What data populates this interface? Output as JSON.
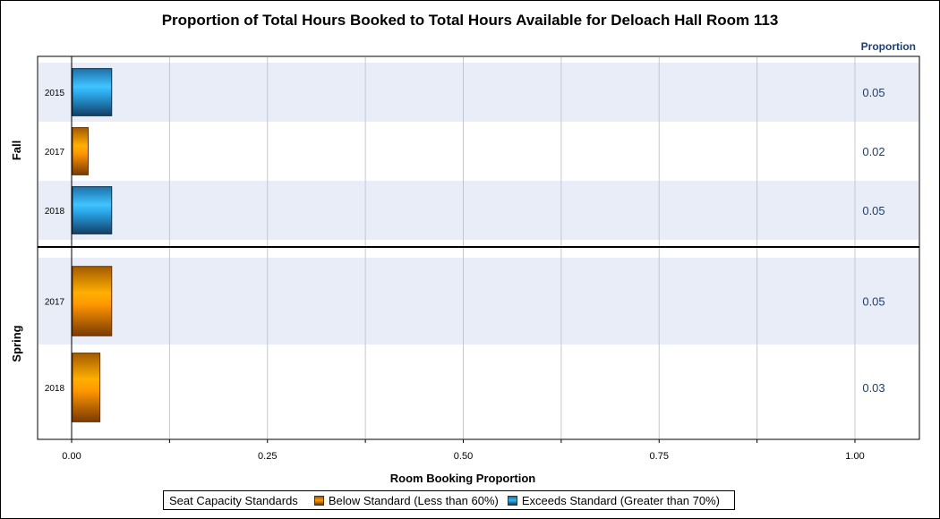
{
  "chart_data": {
    "type": "bar",
    "orientation": "horizontal",
    "title": "Proportion of Total Hours Booked to Total Hours Available for Deloach Hall Room 113",
    "xlabel": "Room Booking Proportion",
    "value_column_header": "Proportion",
    "xlim": [
      0,
      1.0
    ],
    "xticks": [
      "0.00",
      "0.25",
      "0.50",
      "0.75",
      "1.00"
    ],
    "grid": true,
    "legend_position": "bottom",
    "legend": {
      "title": "Seat Capacity Standards",
      "entries": [
        {
          "label": "Below Standard (Less than 60%)",
          "color": "#ff9a00"
        },
        {
          "label": "Exceeds Standard (Greater than 70%)",
          "color": "#33b5f0"
        }
      ]
    },
    "groups": [
      {
        "name": "Fall",
        "bars": [
          {
            "category": "2015",
            "value": 0.05,
            "label": "0.05",
            "standard": "Exceeds Standard (Greater than 70%)"
          },
          {
            "category": "2017",
            "value": 0.02,
            "label": "0.02",
            "standard": "Below Standard (Less than 60%)"
          },
          {
            "category": "2018",
            "value": 0.05,
            "label": "0.05",
            "standard": "Exceeds Standard (Greater than 70%)"
          }
        ]
      },
      {
        "name": "Spring",
        "bars": [
          {
            "category": "2017",
            "value": 0.05,
            "label": "0.05",
            "standard": "Below Standard (Less than 60%)"
          },
          {
            "category": "2018",
            "value": 0.035,
            "label": "0.03",
            "standard": "Below Standard (Less than 60%)"
          }
        ]
      }
    ]
  }
}
